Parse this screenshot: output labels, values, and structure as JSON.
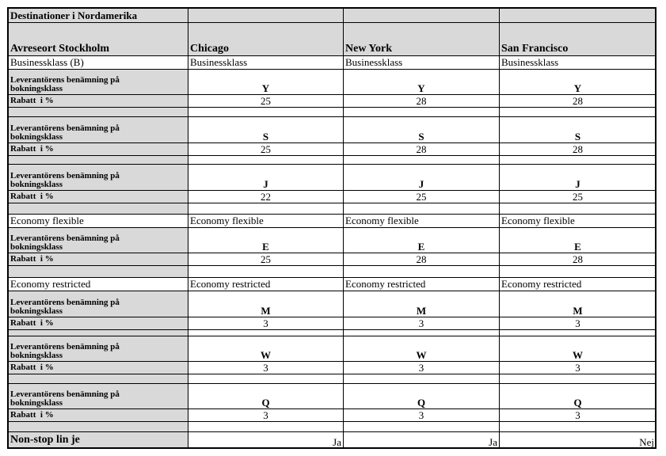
{
  "title": "Destinationer i Nordamerika",
  "table": {
    "header": [
      "Avreseort Stockholm",
      "Chicago",
      "New York",
      "San Francisco"
    ],
    "rows": [
      [
        "Businessklass (B)",
        "Businessklass",
        "Businessklass",
        "Businessklass"
      ],
      [
        "Leverantörens benämning på bokningsklass",
        "Y",
        "Y",
        "Y"
      ],
      [
        "Rabatt  i %",
        25,
        28,
        28
      ],
      [
        "Leverantörens benämning på bokningsklass",
        "S",
        "S",
        "S"
      ],
      [
        "Rabatt  i %",
        25,
        28,
        28
      ],
      [
        "Leverantörens benämning på bokningsklass",
        "J",
        "J",
        "J"
      ],
      [
        "Rabatt  i %",
        22,
        25,
        25
      ],
      [
        "Economy flexible",
        "Economy flexible",
        "Economy flexible",
        "Economy flexible"
      ],
      [
        "Leverantörens benämning på bokningsklass",
        "E",
        "E",
        "E"
      ],
      [
        "Rabatt  i %",
        25,
        28,
        28
      ],
      [
        "Economy restricted",
        "Economy restricted",
        "Economy restricted",
        "Economy restricted"
      ],
      [
        "Leverantörens benämning på bokningsklass",
        "M",
        "M",
        "M"
      ],
      [
        "Rabatt  i %",
        3,
        3,
        3
      ],
      [
        "Leverantörens benämning på bokningsklass",
        "W",
        "W",
        "W"
      ],
      [
        "Rabatt  i %",
        3,
        3,
        3
      ],
      [
        "Leverantörens benämning på bokningsklass",
        "Q",
        "Q",
        "Q"
      ],
      [
        "Rabatt  i %",
        3,
        3,
        3
      ],
      [
        "Non-stop lin je",
        "Ja",
        "Ja",
        "Nej"
      ]
    ]
  }
}
